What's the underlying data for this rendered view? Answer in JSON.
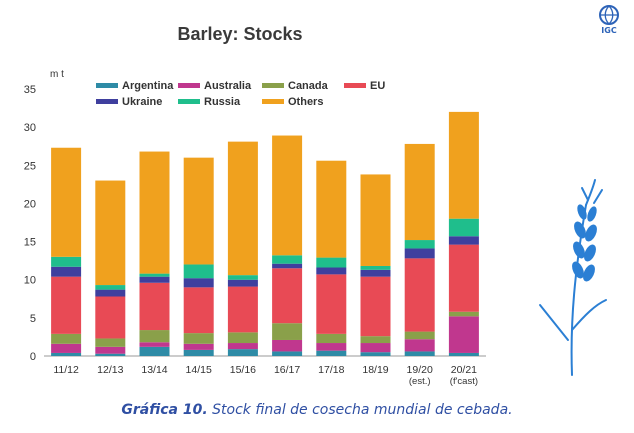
{
  "logo": {
    "text": "IGC",
    "icon": "globe-icon"
  },
  "caption": {
    "label": "Gráfica 10.",
    "text": " Stock final de cosecha mundial de cebada."
  },
  "decoration": {
    "icon": "wheat-ear-icon",
    "color": "#2b7fd4"
  },
  "chart_data": {
    "type": "bar",
    "stacked": true,
    "title": "Barley: Stocks",
    "ylabel": "m t",
    "ylim": [
      0,
      35
    ],
    "yticks": [
      0,
      5,
      10,
      15,
      20,
      25,
      30,
      35
    ],
    "grid": false,
    "legend_position": "top",
    "categories": [
      [
        "11/12"
      ],
      [
        "12/13"
      ],
      [
        "13/14"
      ],
      [
        "14/15"
      ],
      [
        "15/16"
      ],
      [
        "16/17"
      ],
      [
        "17/18"
      ],
      [
        "18/19"
      ],
      [
        "19/20",
        "(est.)"
      ],
      [
        "20/21",
        "(f'cast)"
      ]
    ],
    "series": [
      {
        "name": "Argentina",
        "color": "#2e8ba6",
        "values": [
          0.4,
          0.3,
          1.2,
          0.8,
          0.9,
          0.6,
          0.7,
          0.5,
          0.6,
          0.4
        ]
      },
      {
        "name": "Australia",
        "color": "#c0378e",
        "values": [
          1.2,
          0.9,
          0.6,
          0.8,
          0.8,
          1.5,
          1.0,
          1.2,
          1.6,
          4.8
        ]
      },
      {
        "name": "Canada",
        "color": "#8aa04a",
        "values": [
          1.3,
          1.1,
          1.6,
          1.4,
          1.4,
          2.2,
          1.2,
          0.9,
          1.0,
          0.6
        ]
      },
      {
        "name": "EU",
        "color": "#e84a55",
        "values": [
          7.5,
          5.5,
          6.2,
          6.0,
          6.0,
          7.2,
          7.8,
          7.8,
          9.6,
          8.8
        ]
      },
      {
        "name": "Ukraine",
        "color": "#3f3f9e",
        "values": [
          1.3,
          0.9,
          0.8,
          1.2,
          0.9,
          0.6,
          0.9,
          0.9,
          1.3,
          1.1
        ]
      },
      {
        "name": "Russia",
        "color": "#1fbe8c",
        "values": [
          1.3,
          0.6,
          0.4,
          1.8,
          0.6,
          1.1,
          1.3,
          0.5,
          1.1,
          2.3
        ]
      },
      {
        "name": "Others",
        "color": "#f0a11e",
        "values": [
          14.3,
          13.7,
          16.0,
          14.0,
          17.5,
          15.7,
          12.7,
          12.0,
          12.6,
          14.0
        ]
      }
    ]
  }
}
